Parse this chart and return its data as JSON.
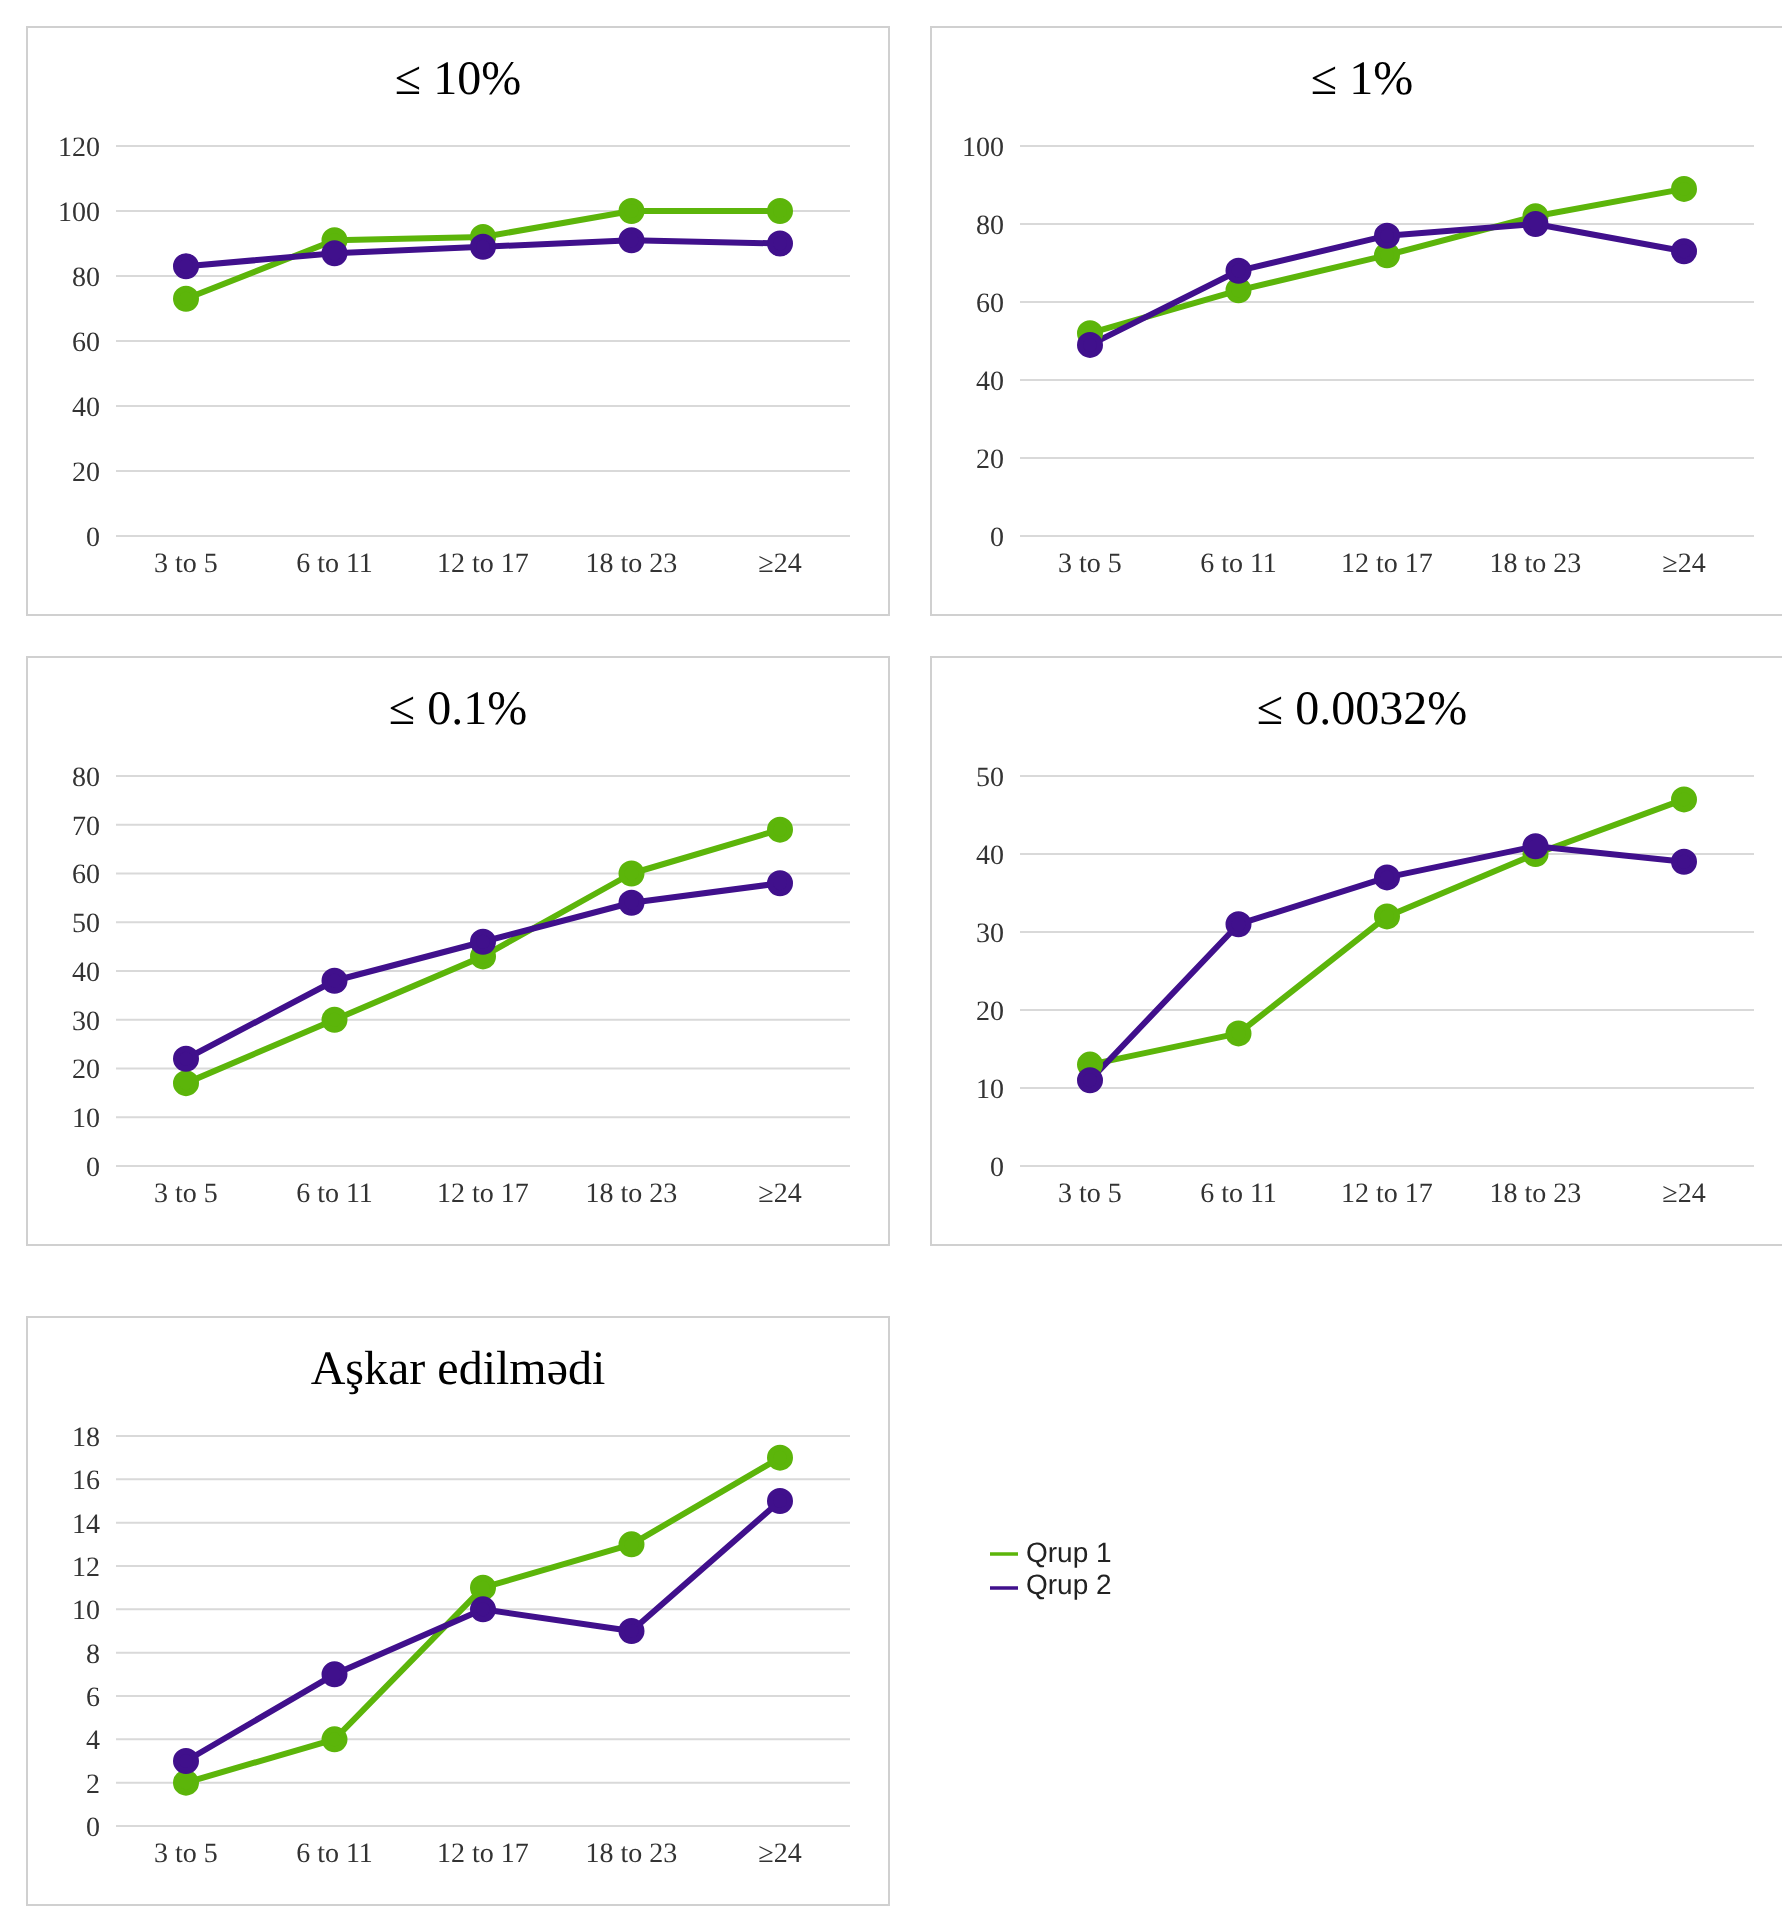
{
  "chart_data": [
    {
      "type": "line",
      "title": "≤ 10%",
      "categories": [
        "3 to 5",
        "6 to 11",
        "12 to 17",
        "18 to 23",
        "≥24"
      ],
      "series": [
        {
          "color": "#5cb50a",
          "values": [
            73,
            91,
            92,
            100,
            100
          ]
        },
        {
          "color": "#40108c",
          "values": [
            83,
            87,
            89,
            91,
            90
          ]
        }
      ],
      "ylim": [
        0,
        120
      ],
      "yticks": [
        0,
        20,
        40,
        60,
        80,
        100,
        120
      ],
      "grid": "y",
      "marker": "circle",
      "legend": false
    },
    {
      "type": "line",
      "title": "≤ 1%",
      "categories": [
        "3 to 5",
        "6 to 11",
        "12 to 17",
        "18 to 23",
        "≥24"
      ],
      "series": [
        {
          "color": "#5cb50a",
          "values": [
            52,
            63,
            72,
            82,
            89
          ]
        },
        {
          "color": "#40108c",
          "values": [
            49,
            68,
            77,
            80,
            73
          ]
        }
      ],
      "ylim": [
        0,
        100
      ],
      "yticks": [
        0,
        20,
        40,
        60,
        80,
        100
      ],
      "grid": "y",
      "marker": "circle",
      "legend": false
    },
    {
      "type": "line",
      "title": "≤ 0.1%",
      "categories": [
        "3 to 5",
        "6 to 11",
        "12 to 17",
        "18 to 23",
        "≥24"
      ],
      "series": [
        {
          "color": "#5cb50a",
          "values": [
            17,
            30,
            43,
            60,
            69
          ]
        },
        {
          "color": "#40108c",
          "values": [
            22,
            38,
            46,
            54,
            58
          ]
        }
      ],
      "ylim": [
        0,
        80
      ],
      "yticks": [
        0,
        10,
        20,
        30,
        40,
        50,
        60,
        70,
        80
      ],
      "grid": "y",
      "marker": "circle",
      "legend": false
    },
    {
      "type": "line",
      "title": "≤ 0.0032%",
      "categories": [
        "3 to 5",
        "6 to 11",
        "12 to 17",
        "18 to 23",
        "≥24"
      ],
      "series": [
        {
          "color": "#5cb50a",
          "values": [
            13,
            17,
            32,
            40,
            47
          ]
        },
        {
          "color": "#40108c",
          "values": [
            11,
            31,
            37,
            41,
            39
          ]
        }
      ],
      "ylim": [
        0,
        50
      ],
      "yticks": [
        0,
        10,
        20,
        30,
        40,
        50
      ],
      "grid": "y",
      "marker": "circle",
      "legend": false
    },
    {
      "type": "line",
      "title": "Aşkar edilmədi",
      "categories": [
        "3 to 5",
        "6 to 11",
        "12 to 17",
        "18 to 23",
        "≥24"
      ],
      "series": [
        {
          "name": "Qrup 1",
          "color": "#5cb50a",
          "values": [
            2,
            4,
            11,
            13,
            17
          ]
        },
        {
          "name": "Qrup 2",
          "color": "#40108c",
          "values": [
            3,
            7,
            10,
            9,
            15
          ]
        }
      ],
      "ylim": [
        0,
        18
      ],
      "yticks": [
        0,
        2,
        4,
        6,
        8,
        10,
        12,
        14,
        16,
        18
      ],
      "grid": "y",
      "marker": "circle",
      "legend": "right"
    }
  ]
}
